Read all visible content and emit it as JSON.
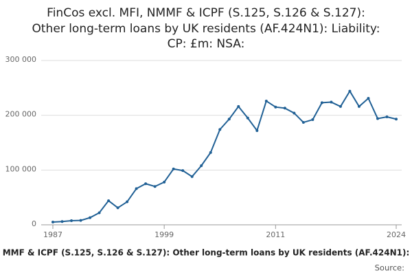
{
  "chart_data": {
    "type": "line",
    "title": [
      "FinCos excl. MFI, NMMF & ICPF (S.125, S.126 & S.127):",
      "Other long-term loans by UK residents (AF.424N1): Liability:",
      "CP: £m: NSA:"
    ],
    "x": [
      1987,
      1988,
      1989,
      1990,
      1991,
      1992,
      1993,
      1994,
      1995,
      1996,
      1997,
      1998,
      1999,
      2000,
      2001,
      2002,
      2003,
      2004,
      2005,
      2006,
      2007,
      2008,
      2009,
      2010,
      2011,
      2012,
      2013,
      2014,
      2015,
      2016,
      2017,
      2018,
      2019,
      2020,
      2021,
      2022,
      2023,
      2024
    ],
    "series": [
      {
        "name": "MMF & ICPF (S.125, S.126 & S.127): Other long-term loans by UK residents (AF.424N1):",
        "color": "#206095",
        "values": [
          5000,
          6000,
          7500,
          8000,
          13000,
          22000,
          44000,
          31000,
          42000,
          66000,
          75000,
          70000,
          78000,
          102000,
          99000,
          88000,
          108000,
          132000,
          174000,
          193000,
          216000,
          195000,
          172000,
          226000,
          215000,
          213000,
          204000,
          187000,
          192000,
          223000,
          224000,
          216000,
          244000,
          216000,
          231000,
          194000,
          197000,
          193000
        ]
      }
    ],
    "xlim": [
      1987,
      2024
    ],
    "xticks": [
      1987,
      1999,
      2011,
      2024
    ],
    "ylim": [
      0,
      300000
    ],
    "yticks": [
      0,
      {
        "value": 100000,
        "label": "100 000"
      },
      {
        "value": 200000,
        "label": "200 000"
      },
      {
        "value": 300000,
        "label": "300 000"
      }
    ],
    "grid": true,
    "source": "Source:"
  }
}
